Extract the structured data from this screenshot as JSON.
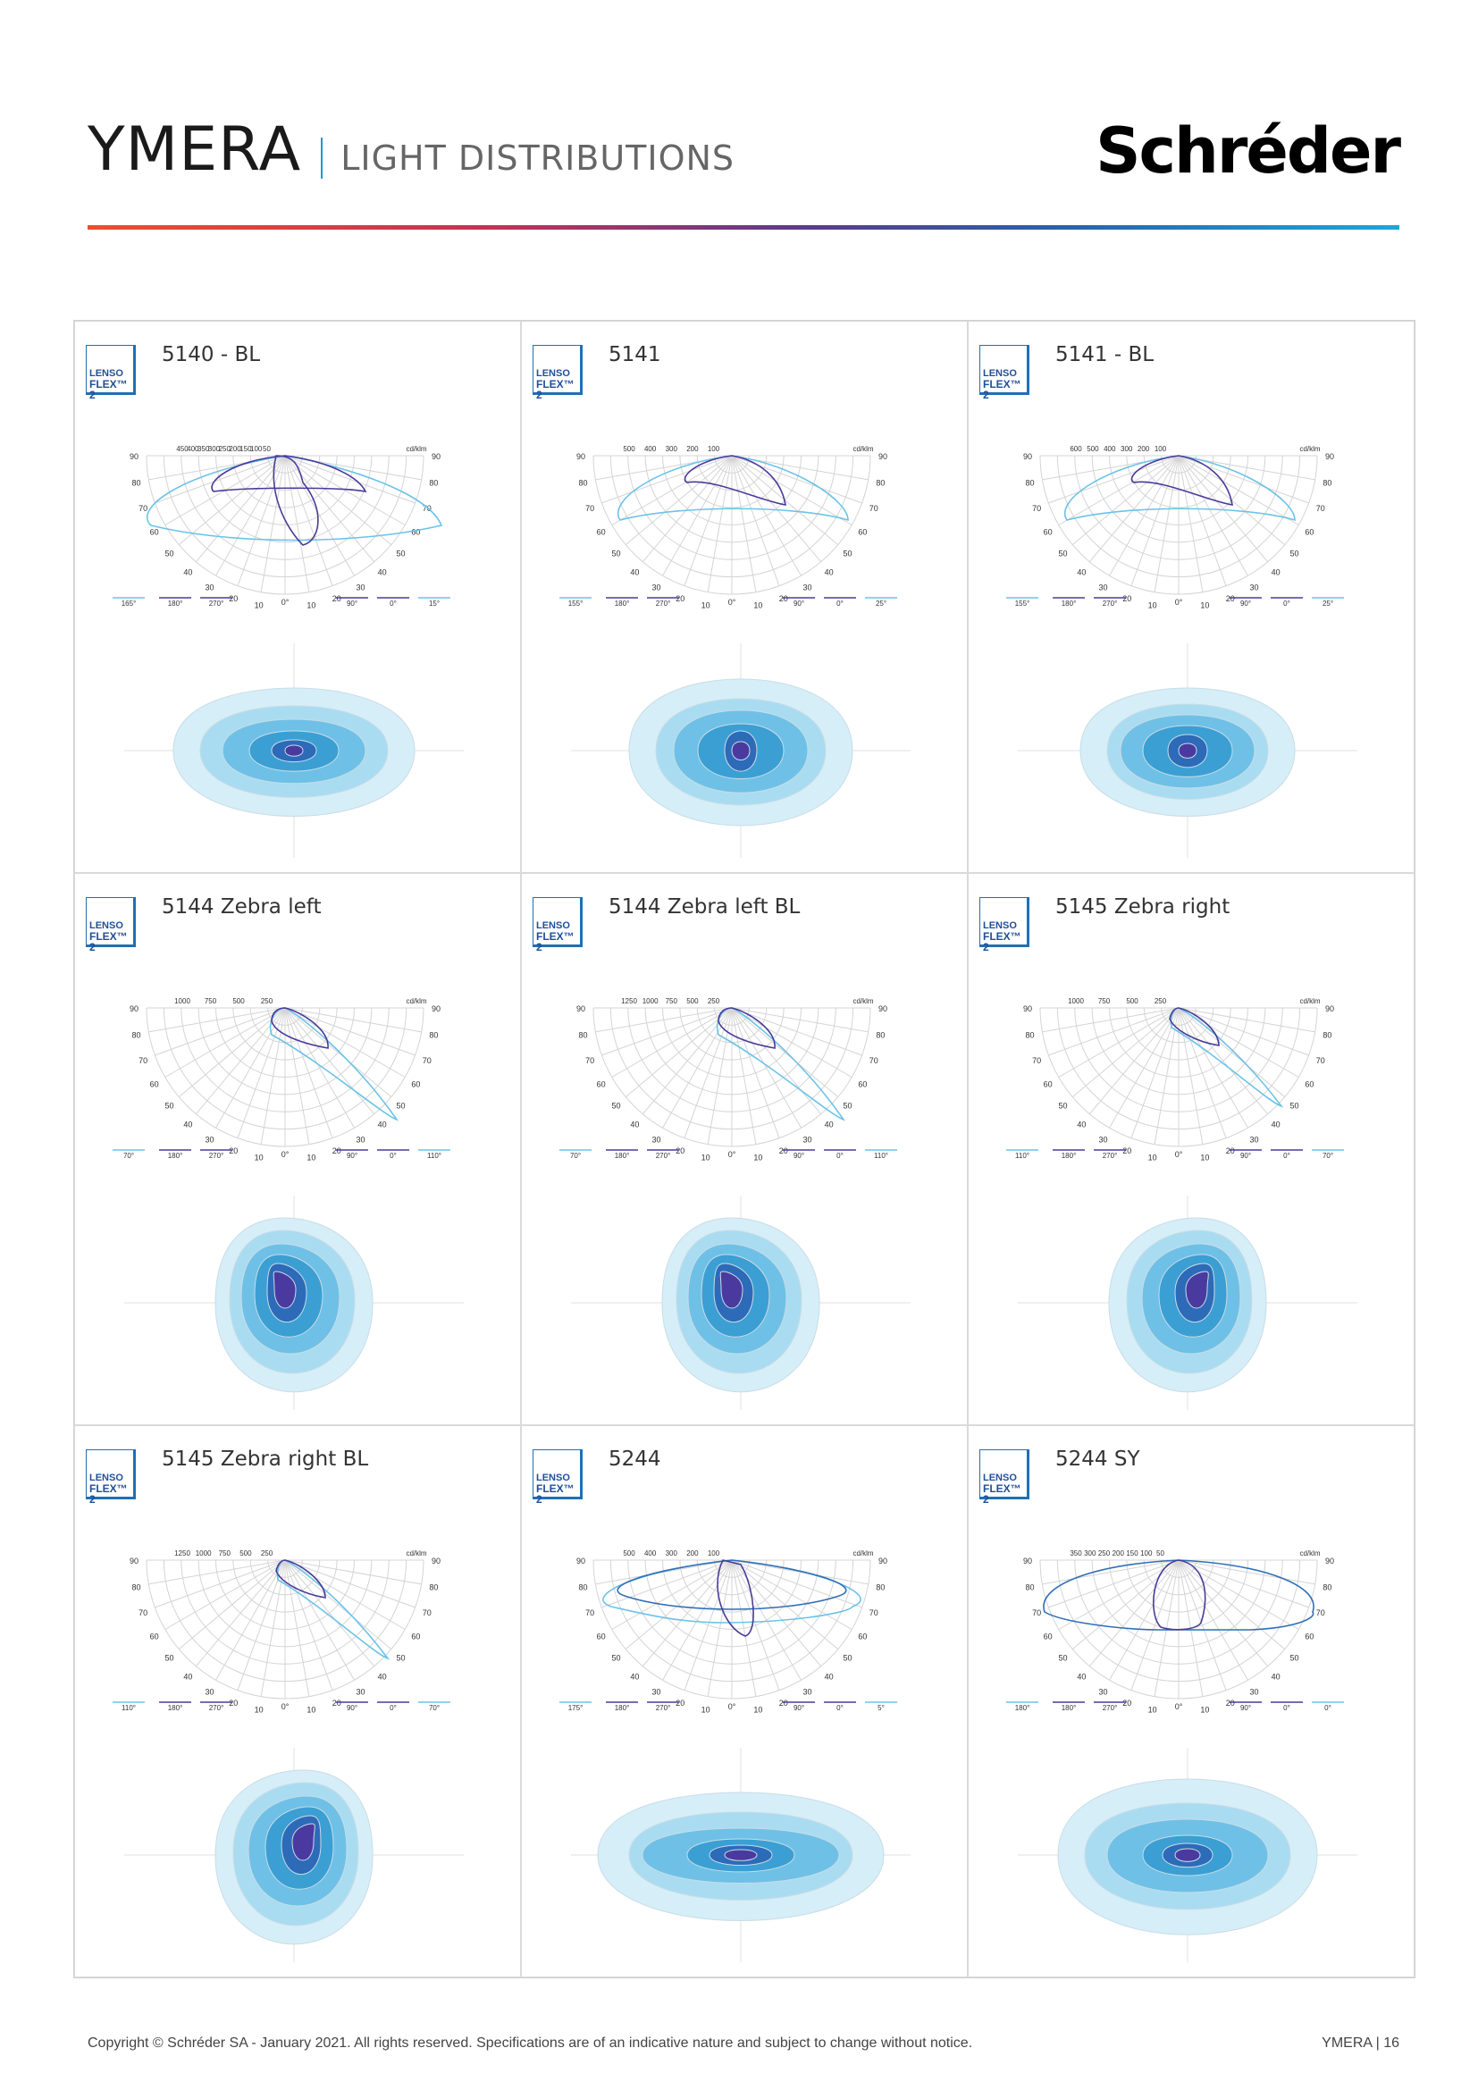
{
  "header": {
    "title": "YMERA",
    "subtitle": "LIGHT DISTRIBUTIONS",
    "brand": "Schréder"
  },
  "logo": {
    "line1": "LENSO",
    "line2": "FLEX™ 2"
  },
  "polar_common": {
    "unit": "cd/klm",
    "angle_labels": [
      "90",
      "80",
      "70",
      "60",
      "50",
      "40",
      "30",
      "20",
      "10",
      "0°"
    ],
    "legend_fixed": [
      "180°",
      "270°",
      "90°",
      "0°"
    ]
  },
  "cells": [
    {
      "name": "5140 - BL",
      "scale": [
        "450",
        "400",
        "350",
        "300",
        "250",
        "200",
        "150",
        "100",
        "50"
      ],
      "legend_left": "165°",
      "legend_right": "15°",
      "shape": "bl"
    },
    {
      "name": "5141",
      "scale": [
        "500",
        "400",
        "300",
        "200",
        "100"
      ],
      "legend_left": "155°",
      "legend_right": "25°",
      "shape": "5141"
    },
    {
      "name": "5141 - BL",
      "scale": [
        "600",
        "500",
        "400",
        "300",
        "200",
        "100"
      ],
      "legend_left": "155°",
      "legend_right": "25°",
      "shape": "5141bl"
    },
    {
      "name": "5144 Zebra left",
      "scale": [
        "1000",
        "750",
        "500",
        "250"
      ],
      "legend_left": "70°",
      "legend_right": "110°",
      "shape": "zl"
    },
    {
      "name": "5144 Zebra left BL",
      "scale": [
        "1250",
        "1000",
        "750",
        "500",
        "250"
      ],
      "legend_left": "70°",
      "legend_right": "110°",
      "shape": "zl"
    },
    {
      "name": "5145 Zebra right",
      "scale": [
        "1000",
        "750",
        "500",
        "250"
      ],
      "legend_left": "110°",
      "legend_right": "70°",
      "shape": "zr"
    },
    {
      "name": "5145 Zebra right BL",
      "scale": [
        "1250",
        "1000",
        "750",
        "500",
        "250"
      ],
      "legend_left": "110°",
      "legend_right": "70°",
      "shape": "zr"
    },
    {
      "name": "5244",
      "scale": [
        "500",
        "400",
        "300",
        "200",
        "100"
      ],
      "legend_left": "175°",
      "legend_right": "5°",
      "shape": "5244"
    },
    {
      "name": "5244 SY",
      "scale": [
        "350",
        "300",
        "250",
        "200",
        "150",
        "100",
        "50"
      ],
      "legend_left": "180°",
      "legend_right": "0°",
      "shape": "5244sy"
    }
  ],
  "colors": {
    "light": "#d6eef8",
    "mid1": "#a9dcf0",
    "mid2": "#6fc0e6",
    "mid3": "#3b9fd3",
    "dark": "#3158b0",
    "deep": "#4a3aa0",
    "curve_c0": "#4a3a9a",
    "curve_c90": "#6bc3e8"
  },
  "footer": {
    "copyright": "Copyright © Schréder SA - January 2021. All rights reserved. Specifications are of an indicative nature and subject to change without notice.",
    "page": "YMERA | 16"
  }
}
